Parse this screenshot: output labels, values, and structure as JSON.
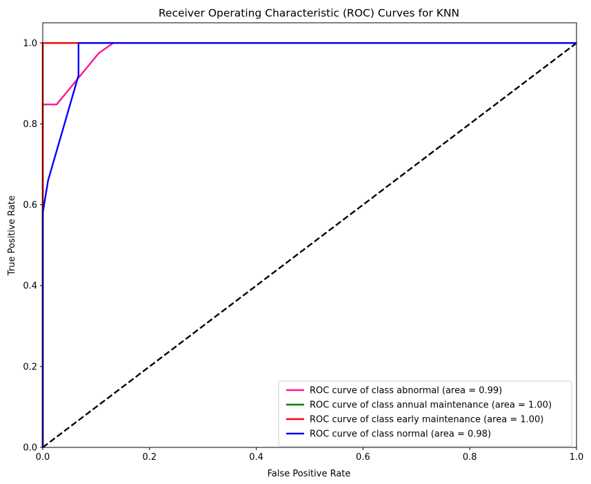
{
  "chart_data": {
    "type": "line",
    "title": "Receiver Operating Characteristic (ROC) Curves for KNN",
    "xlabel": "False Positive Rate",
    "ylabel": "True Positive Rate",
    "xlim": [
      0.0,
      1.0
    ],
    "ylim": [
      0.0,
      1.05
    ],
    "xticks": [
      0.0,
      0.2,
      0.4,
      0.6,
      0.8,
      1.0
    ],
    "yticks": [
      0.0,
      0.2,
      0.4,
      0.6,
      0.8,
      1.0
    ],
    "xtick_labels": [
      "0.0",
      "0.2",
      "0.4",
      "0.6",
      "0.8",
      "1.0"
    ],
    "ytick_labels": [
      "0.0",
      "0.2",
      "0.4",
      "0.6",
      "0.8",
      "1.0"
    ],
    "grid": false,
    "legend_position": "lower-right",
    "series": [
      {
        "name": "ROC curve of class abnormal (area = 0.99)",
        "color": "#ff1493",
        "x": [
          0.0,
          0.0,
          0.0,
          0.026,
          0.105,
          0.132,
          1.0
        ],
        "y": [
          0.0,
          0.0,
          0.848,
          0.848,
          0.975,
          1.0,
          1.0
        ]
      },
      {
        "name": "ROC curve of class annual maintenance (area = 1.00)",
        "color": "#008000",
        "x": [
          0.0,
          0.0,
          1.0
        ],
        "y": [
          0.0,
          1.0,
          1.0
        ]
      },
      {
        "name": "ROC curve of class early maintenance (area = 1.00)",
        "color": "#ff0000",
        "x": [
          0.0,
          0.0,
          1.0
        ],
        "y": [
          0.0,
          1.0,
          1.0
        ]
      },
      {
        "name": "ROC curve of class normal (area = 0.98)",
        "color": "#0000ff",
        "x": [
          0.0,
          0.0,
          0.01,
          0.067,
          0.067,
          1.0
        ],
        "y": [
          0.0,
          0.58,
          0.66,
          0.92,
          1.0,
          1.0
        ]
      }
    ],
    "reference_line": {
      "color": "#000000",
      "style": "dashed",
      "x": [
        0.0,
        1.0
      ],
      "y": [
        0.0,
        1.0
      ]
    }
  }
}
